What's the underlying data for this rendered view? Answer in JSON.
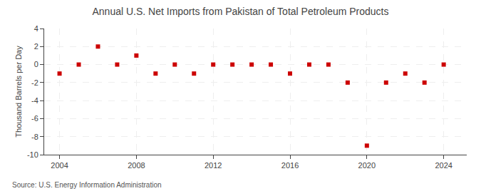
{
  "chart_data": {
    "type": "scatter",
    "title": "Annual U.S. Net Imports from Pakistan of Total Petroleum Products",
    "ylabel": "Thousand Barrels per Day",
    "annotations": [
      "Source: U.S. Energy Information Administration"
    ],
    "x": [
      2004,
      2005,
      2006,
      2007,
      2008,
      2009,
      2010,
      2011,
      2012,
      2013,
      2014,
      2015,
      2016,
      2017,
      2018,
      2019,
      2020,
      2021,
      2022,
      2023,
      2024
    ],
    "values": [
      -1,
      0,
      2,
      0,
      1,
      -1,
      0,
      -1,
      0,
      0,
      0,
      0,
      -1,
      0,
      0,
      -2,
      -9,
      -2,
      -1,
      -2,
      0
    ],
    "color": "#cc0000",
    "marker": "square",
    "xlim": [
      2003.2,
      2025.2
    ],
    "xticks": [
      2004,
      2008,
      2012,
      2016,
      2020,
      2024
    ],
    "ylim": [
      -10,
      4
    ],
    "yticks": [
      -10,
      -8,
      -6,
      -4,
      -2,
      0,
      2,
      4
    ],
    "grid": true
  }
}
